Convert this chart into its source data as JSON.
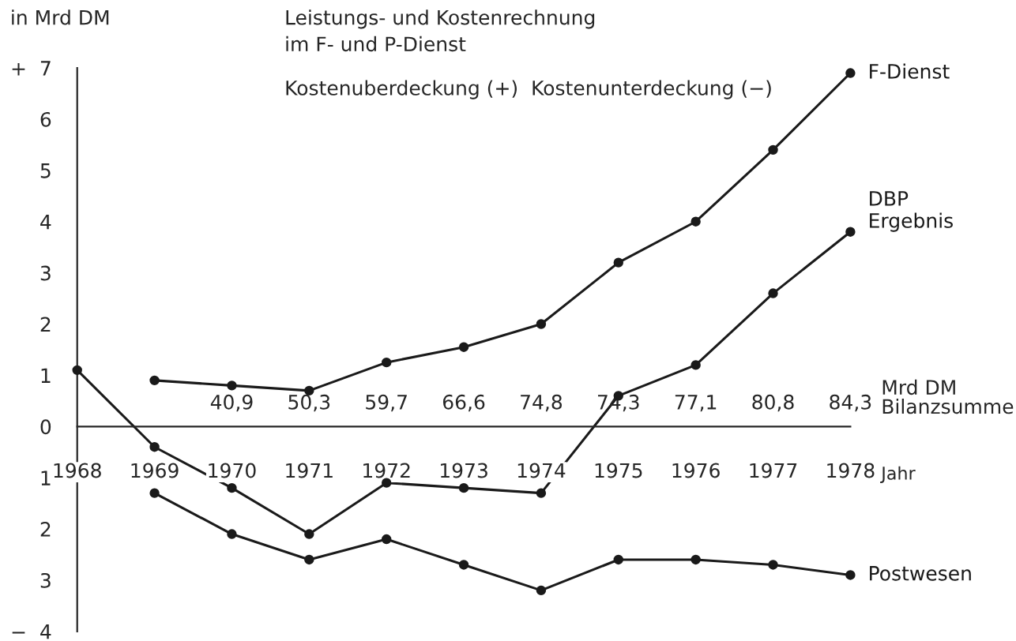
{
  "chart_data": {
    "type": "line",
    "title": "Leistungs- und Kostenrechnung\nim F- und P-Dienst",
    "subtitle": "Kostenuberdeckung (+)  Kostenunterdeckung (−)",
    "ylabel": "in Mrd DM",
    "xlabel": "Jahr",
    "x": [
      1968,
      1969,
      1970,
      1971,
      1972,
      1973,
      1974,
      1975,
      1976,
      1977,
      1978
    ],
    "series": [
      {
        "name": "F-Dienst",
        "color": "#1a1a1a",
        "values": [
          null,
          0.9,
          0.8,
          0.7,
          1.25,
          1.55,
          2.0,
          3.2,
          4.0,
          5.4,
          6.9
        ]
      },
      {
        "name": "DBP\nErgebnis",
        "color": "#1a1a1a",
        "values": [
          1.1,
          -0.4,
          -1.2,
          -2.1,
          -1.1,
          -1.2,
          -1.3,
          0.6,
          1.2,
          2.6,
          3.8
        ]
      },
      {
        "name": "Postwesen",
        "color": "#1a1a1a",
        "values": [
          null,
          -1.3,
          -2.1,
          -2.6,
          -2.2,
          -2.7,
          -3.2,
          -2.6,
          -2.6,
          -2.7,
          -2.9
        ]
      }
    ],
    "annotations": [
      "Mrd DM\nBilanzsumme",
      "40,9",
      "50,3",
      "59,7",
      "66,6",
      "74,8",
      "74,3",
      "77,1",
      "80,8",
      "84,3"
    ],
    "xlim": [
      1968,
      1978
    ],
    "xticks": [
      1968,
      1969,
      1970,
      1971,
      1972,
      1973,
      1974,
      1975,
      1976,
      1977,
      1978
    ],
    "ylim": [
      -4,
      7
    ],
    "yticks": [
      {
        "value": -4,
        "label": "−  4"
      },
      {
        "value": -3,
        "label": "3"
      },
      {
        "value": -2,
        "label": "2"
      },
      {
        "value": -1,
        "label": "1"
      },
      0,
      1,
      2,
      3,
      4,
      5,
      6,
      {
        "value": 7,
        "label": "+  7"
      }
    ],
    "marker": "circle",
    "line_style": "solid",
    "grid": false,
    "legend": false
  }
}
